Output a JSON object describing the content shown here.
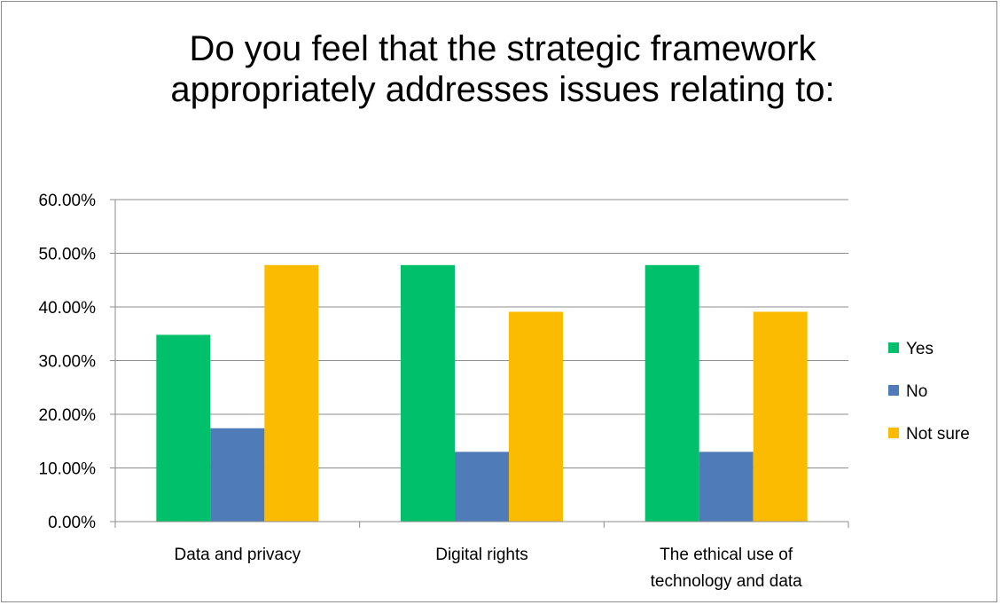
{
  "chart_data": {
    "type": "bar",
    "title": "Do you feel that the strategic framework appropriately addresses issues relating to:",
    "categories": [
      [
        "Data and privacy"
      ],
      [
        "Digital rights"
      ],
      [
        "The ethical use of",
        "technology and data"
      ]
    ],
    "series": [
      {
        "name": "Yes",
        "color": "#00c06b",
        "values": [
          34.8,
          47.8,
          47.8
        ]
      },
      {
        "name": "No",
        "color": "#4f7cb8",
        "values": [
          17.4,
          13.0,
          13.0
        ]
      },
      {
        "name": "Not sure",
        "color": "#fbbb00",
        "values": [
          47.8,
          39.1,
          39.1
        ]
      }
    ],
    "ylim": [
      0,
      60
    ],
    "yticks": [
      "0.00%",
      "10.00%",
      "20.00%",
      "30.00%",
      "40.00%",
      "50.00%",
      "60.00%"
    ],
    "grid": true,
    "legend": "right"
  }
}
